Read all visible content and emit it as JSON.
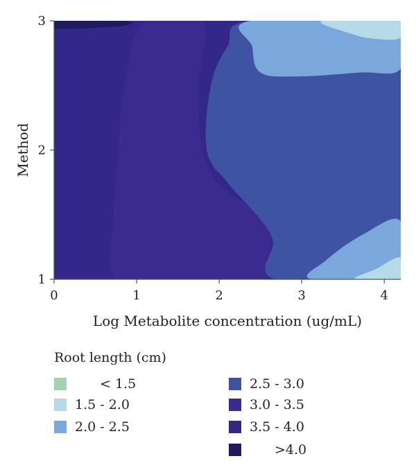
{
  "chart_data": {
    "type": "heatmap",
    "subtype": "filled-contour",
    "xlabel": "Log Metabolite concentration (ug/mL)",
    "ylabel": "Method",
    "xlim": [
      0,
      4.2
    ],
    "ylim": [
      1,
      3
    ],
    "x_ticks": [
      "0",
      "1",
      "2",
      "3",
      "4"
    ],
    "y_ticks": [
      "1",
      "2",
      "3"
    ],
    "legend_title": "Root length (cm)",
    "legend_placement": "bottom",
    "levels": [
      {
        "label": "< 1.5",
        "color": "#a3d3b2"
      },
      {
        "label": "1.5 - 2.0",
        "color": "#b7dbe6"
      },
      {
        "label": "2.0 - 2.5",
        "color": "#7aa8dc"
      },
      {
        "label": "2.5 - 3.0",
        "color": "#3e53a2"
      },
      {
        "label": "3.0 - 3.5",
        "color": "#3b2a8f"
      },
      {
        "label": "3.5 - 4.0",
        "color": "#33278a"
      },
      {
        "label": ">4.0",
        "color": "#1f1c5e"
      }
    ],
    "regions": [
      {
        "level": "3.5 - 4.0",
        "polygon": [
          [
            0,
            1
          ],
          [
            4.2,
            1
          ],
          [
            4.2,
            3
          ],
          [
            0,
            3
          ]
        ]
      },
      {
        "level": "3.0 - 3.5",
        "polygon": [
          [
            0.75,
            1
          ],
          [
            1.55,
            1
          ],
          [
            2.5,
            1
          ],
          [
            2.68,
            1
          ],
          [
            2.62,
            1.3
          ],
          [
            2.55,
            1.5
          ],
          [
            2.05,
            1.7
          ],
          [
            1.8,
            2
          ],
          [
            1.75,
            2.5
          ],
          [
            1.8,
            3
          ],
          [
            1.1,
            3
          ],
          [
            0.85,
            2.5
          ],
          [
            0.78,
            2
          ],
          [
            0.72,
            1.5
          ]
        ]
      },
      {
        "level": "2.5 - 3.0",
        "polygon": [
          [
            2.68,
            1
          ],
          [
            4.2,
            1
          ],
          [
            4.2,
            3
          ],
          [
            2.38,
            3
          ],
          [
            2.1,
            2.8
          ],
          [
            1.9,
            2.5
          ],
          [
            1.85,
            2
          ],
          [
            2.1,
            1.75
          ],
          [
            2.45,
            1.5
          ],
          [
            2.65,
            1.3
          ]
        ]
      },
      {
        "level": "2.0 - 2.5",
        "polygon": [
          [
            2.38,
            3
          ],
          [
            4.2,
            3
          ],
          [
            4.2,
            2.63
          ],
          [
            3.7,
            2.6
          ],
          [
            2.95,
            2.57
          ],
          [
            2.5,
            2.6
          ],
          [
            2.4,
            2.8
          ]
        ]
      },
      {
        "level": "1.5 - 2.0",
        "polygon": [
          [
            3.25,
            3
          ],
          [
            4.2,
            3
          ],
          [
            4.2,
            2.87
          ],
          [
            3.9,
            2.86
          ],
          [
            3.6,
            2.9
          ]
        ]
      },
      {
        "level": "2.0 - 2.5",
        "polygon": [
          [
            3.12,
            1
          ],
          [
            4.2,
            1
          ],
          [
            4.2,
            1.45
          ],
          [
            3.75,
            1.35
          ],
          [
            3.3,
            1.15
          ]
        ]
      },
      {
        "level": "1.5 - 2.0",
        "polygon": [
          [
            3.65,
            1
          ],
          [
            4.2,
            1
          ],
          [
            4.2,
            1.17
          ],
          [
            3.9,
            1.08
          ]
        ]
      },
      {
        "level": ">4.0",
        "polygon": [
          [
            0,
            2.94
          ],
          [
            0.82,
            2.96
          ],
          [
            0.85,
            3
          ],
          [
            0,
            3
          ]
        ]
      }
    ]
  }
}
